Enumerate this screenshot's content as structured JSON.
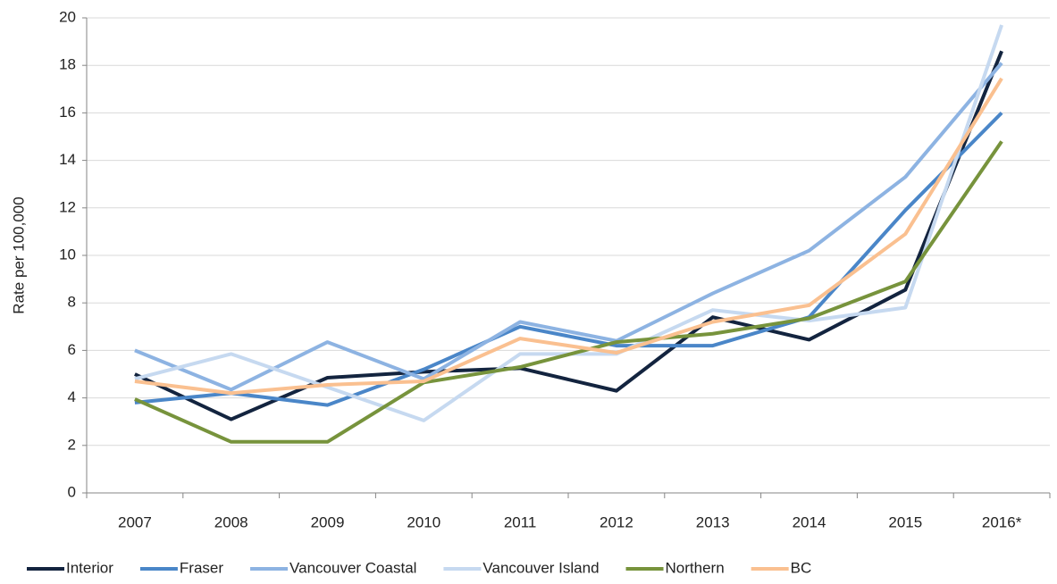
{
  "chart_data": {
    "type": "line",
    "y_label": "Rate per 100,000",
    "categories": [
      "2007",
      "2008",
      "2009",
      "2010",
      "2011",
      "2012",
      "2013",
      "2014",
      "2015",
      "2016*"
    ],
    "series": [
      {
        "name": "Interior",
        "color": "#13243f",
        "values": [
          5.0,
          3.1,
          4.85,
          5.1,
          5.25,
          4.3,
          7.4,
          6.45,
          8.55,
          18.6
        ]
      },
      {
        "name": "Fraser",
        "color": "#4a86c8",
        "values": [
          3.8,
          4.2,
          3.7,
          5.2,
          7.0,
          6.2,
          6.2,
          7.4,
          11.9,
          16.0
        ]
      },
      {
        "name": "Vancouver Coastal",
        "color": "#8db3e2",
        "values": [
          6.0,
          4.35,
          6.35,
          4.8,
          7.2,
          6.4,
          8.4,
          10.2,
          13.3,
          18.1
        ]
      },
      {
        "name": "Vancouver Island",
        "color": "#c6d9f0",
        "values": [
          4.8,
          5.85,
          4.45,
          3.05,
          5.85,
          5.85,
          7.7,
          7.25,
          7.8,
          19.7
        ]
      },
      {
        "name": "Northern",
        "color": "#77933c",
        "values": [
          3.95,
          2.15,
          2.15,
          4.65,
          5.3,
          6.35,
          6.7,
          7.35,
          8.9,
          14.8
        ]
      },
      {
        "name": "BC",
        "color": "#fac090",
        "values": [
          4.7,
          4.2,
          4.55,
          4.7,
          6.5,
          5.9,
          7.2,
          7.9,
          10.9,
          17.45
        ]
      }
    ],
    "ylim": [
      0,
      20
    ],
    "yticks": [
      0,
      2,
      4,
      6,
      8,
      10,
      12,
      14,
      16,
      18,
      20
    ],
    "grid": true,
    "legend": "bottom"
  }
}
